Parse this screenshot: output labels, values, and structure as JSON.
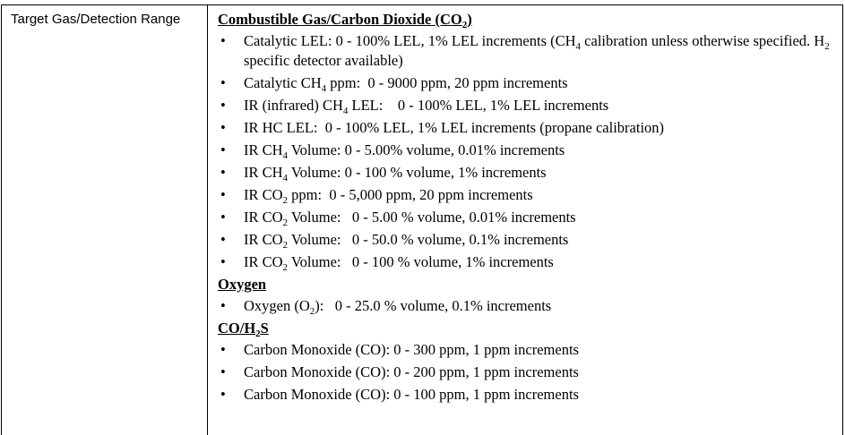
{
  "row": {
    "label": "Target Gas/Detection Range",
    "sections": [
      {
        "heading": [
          "Combustible Gas/Carbon Dioxide (CO",
          "2",
          ")"
        ],
        "items": [
          [
            "Catalytic LEL: 0 - 100% LEL, 1% LEL increments (CH",
            "4",
            " calibration unless otherwise specified. H",
            "2",
            " specific detector available)"
          ],
          [
            "Catalytic CH",
            "4",
            " ppm:  0 - 9000 ppm, 20 ppm increments"
          ],
          [
            "IR (infrared) CH",
            "4",
            " LEL:    0 - 100% LEL, 1% LEL increments"
          ],
          [
            "IR HC LEL:  0 - 100% LEL, 1% LEL increments (propane calibration)"
          ],
          [
            "IR CH",
            "4",
            " Volume: 0 - 5.00% volume, 0.01% increments"
          ],
          [
            "IR CH",
            "4",
            " Volume: 0 - 100 % volume, 1% increments"
          ],
          [
            "IR CO",
            "2",
            " ppm:  0 - 5,000 ppm, 20 ppm increments"
          ],
          [
            "IR CO",
            "2",
            " Volume:   0 - 5.00 % volume, 0.01% increments"
          ],
          [
            "IR CO",
            "2",
            " Volume:   0 - 50.0 % volume, 0.1% increments"
          ],
          [
            "IR CO",
            "2",
            " Volume:   0 - 100 % volume, 1% increments"
          ]
        ]
      },
      {
        "heading": [
          "Oxygen"
        ],
        "items": [
          [
            "Oxygen (O",
            "2",
            "):   0 - 25.0 % volume, 0.1% increments"
          ]
        ]
      },
      {
        "heading": [
          "CO/H",
          "2",
          "S"
        ],
        "items": [
          [
            "Carbon Monoxide (CO): 0 - 300 ppm, 1 ppm increments"
          ],
          [
            "Carbon Monoxide (CO): 0 - 200 ppm, 1 ppm increments"
          ],
          [
            "Carbon Monoxide (CO): 0 - 100 ppm, 1 ppm increments"
          ]
        ]
      }
    ]
  }
}
